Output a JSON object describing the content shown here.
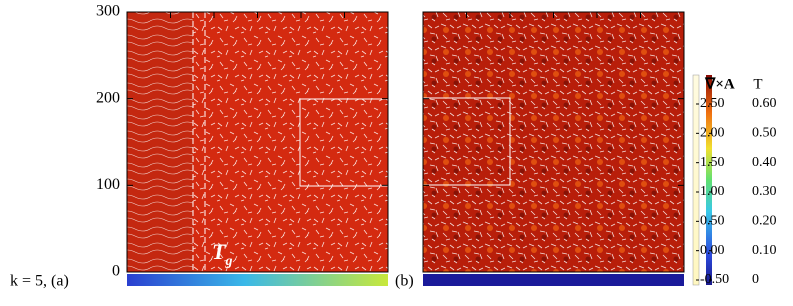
{
  "chart_data": {
    "type": "heatmap",
    "ylim": [
      0,
      300
    ],
    "yticks": [
      0,
      100,
      200,
      300
    ],
    "annotations": {
      "panel_a": "k = 5, (a)",
      "panel_b": "(b)",
      "tg_main": "T",
      "tg_sub": "g"
    },
    "colorbar": {
      "left_title": "∇×A",
      "left_lim": [
        -0.5,
        2.7
      ],
      "left_ticks": [
        {
          "value": -0.5,
          "label": "-0.50"
        },
        {
          "value": 0,
          "label": "0.00"
        },
        {
          "value": 0.5,
          "label": "0.50"
        },
        {
          "value": 1,
          "label": "1.00"
        },
        {
          "value": 1.5,
          "label": "1.50"
        },
        {
          "value": 2,
          "label": "2.00"
        },
        {
          "value": 2.5,
          "label": "2.50"
        }
      ],
      "right_title": "T",
      "right_lim": [
        0,
        0.65
      ],
      "right_ticks": [
        0,
        {
          "value": 0.1,
          "label": "0.10"
        },
        {
          "value": 0.2,
          "label": "0.20"
        },
        {
          "value": 0.3,
          "label": "0.30"
        },
        {
          "value": 0.4,
          "label": "0.40"
        },
        {
          "value": 0.5,
          "label": "0.50"
        },
        {
          "value": 0.6,
          "label": "0.60"
        }
      ]
    }
  }
}
